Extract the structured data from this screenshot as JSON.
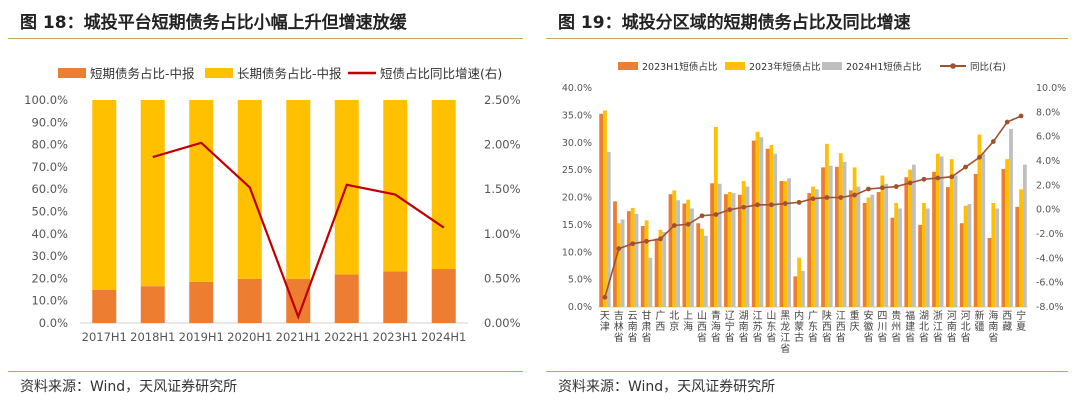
{
  "left_panel": {
    "title": "图 18：城投平台短期债务占比小幅上升但增速放缓",
    "source": "资料来源：Wind，天风证券研究所"
  },
  "right_panel": {
    "title": "图 19：城投分区域的短期债务占比及同比增速",
    "source": "资料来源：Wind，天风证券研究所"
  },
  "colors": {
    "orange": "#ED7D31",
    "yellow": "#FFC000",
    "gray": "#BFBFBF",
    "red": "#C00000",
    "brown": "#A0522D",
    "rule": "#C9A35A"
  },
  "chart_data": [
    {
      "type": "bar",
      "stacked": true,
      "categories": [
        "2017H1",
        "2018H1",
        "2019H1",
        "2020H1",
        "2021H1",
        "2022H1",
        "2023H1",
        "2024H1"
      ],
      "series": [
        {
          "name": "短期债务占比-中报",
          "values": [
            14.8,
            16.5,
            18.5,
            19.8,
            19.8,
            21.8,
            23.2,
            24.2
          ],
          "axis": "left"
        },
        {
          "name": "长期债务占比-中报",
          "values": [
            85.2,
            83.5,
            81.5,
            80.2,
            80.2,
            78.2,
            76.8,
            75.8
          ],
          "axis": "left"
        },
        {
          "name": "短债占比同比增速(右)",
          "type": "line",
          "values": [
            null,
            1.86,
            2.02,
            1.52,
            0.07,
            1.55,
            1.44,
            1.07
          ],
          "axis": "right"
        }
      ],
      "y_left": {
        "min": 0,
        "max": 100,
        "step": 10,
        "ticks": [
          "0.0%",
          "10.0%",
          "20.0%",
          "30.0%",
          "40.0%",
          "50.0%",
          "60.0%",
          "70.0%",
          "80.0%",
          "90.0%",
          "100.0%"
        ]
      },
      "y_right": {
        "min": 0,
        "max": 2.5,
        "step": 0.5,
        "ticks": [
          "0.00%",
          "0.50%",
          "1.00%",
          "1.50%",
          "2.00%",
          "2.50%"
        ]
      },
      "legend": "top"
    },
    {
      "type": "bar",
      "categories": [
        "天津",
        "吉林省",
        "云南省",
        "甘肃省",
        "广西",
        "北京",
        "上海",
        "山西省",
        "青海省",
        "辽宁省",
        "湖南省",
        "江苏省",
        "山东省",
        "黑龙江省",
        "内蒙古",
        "广东省",
        "陕西省",
        "江西省",
        "重庆",
        "安徽省",
        "四川省",
        "贵州省",
        "福建省",
        "湖北省",
        "浙江省",
        "河南省",
        "河北省",
        "新疆",
        "海南省",
        "西藏",
        "宁夏"
      ],
      "series": [
        {
          "name": "2023H1短债占比",
          "values": [
            35.3,
            19.3,
            17.5,
            14.8,
            12.5,
            20.6,
            18.9,
            15.3,
            22.6,
            20.6,
            20.5,
            30.4,
            28.9,
            23.0,
            5.6,
            20.8,
            25.5,
            25.6,
            21.3,
            19.0,
            21.0,
            16.3,
            23.7,
            15.0,
            24.7,
            21.9,
            15.3,
            24.3,
            12.6,
            25.2,
            18.3
          ],
          "axis": "left"
        },
        {
          "name": "2023年短债占比",
          "values": [
            35.9,
            15.3,
            18.1,
            15.8,
            14.1,
            21.3,
            19.6,
            14.3,
            32.9,
            21.0,
            23.0,
            32.0,
            29.6,
            23.0,
            9.0,
            22.0,
            29.8,
            28.1,
            25.5,
            20.0,
            24.0,
            19.0,
            25.1,
            19.0,
            28.0,
            27.0,
            18.5,
            31.5,
            19.0,
            27.0,
            21.5
          ],
          "axis": "left"
        },
        {
          "name": "2024H1短债占比",
          "values": [
            28.3,
            16.0,
            17.0,
            9.0,
            13.7,
            19.5,
            18.0,
            13.0,
            22.5,
            20.8,
            22.0,
            31.0,
            28.0,
            23.5,
            6.6,
            21.5,
            25.8,
            26.5,
            22.0,
            20.5,
            22.5,
            18.0,
            26.0,
            18.0,
            27.5,
            24.0,
            18.8,
            28.0,
            18.0,
            32.5,
            26.0
          ],
          "axis": "left"
        },
        {
          "name": "同比(右)",
          "type": "line",
          "values": [
            -7.2,
            -3.2,
            -2.8,
            -2.6,
            -2.4,
            -1.3,
            -1.2,
            -0.5,
            -0.4,
            0.0,
            0.2,
            0.4,
            0.4,
            0.5,
            0.6,
            0.9,
            1.0,
            1.0,
            1.2,
            1.7,
            1.8,
            1.9,
            2.2,
            2.5,
            2.6,
            2.7,
            3.5,
            4.3,
            5.6,
            7.2,
            7.7
          ],
          "axis": "right"
        }
      ],
      "y_left": {
        "min": 0,
        "max": 40,
        "step": 5,
        "ticks": [
          "0.0%",
          "5.0%",
          "10.0%",
          "15.0%",
          "20.0%",
          "25.0%",
          "30.0%",
          "35.0%",
          "40.0%"
        ]
      },
      "y_right": {
        "min": -8,
        "max": 10,
        "step": 2,
        "ticks": [
          "-8.0%",
          "-6.0%",
          "-4.0%",
          "-2.0%",
          "0.0%",
          "2.0%",
          "4.0%",
          "6.0%",
          "8.0%",
          "10.0%"
        ]
      },
      "legend": "top"
    }
  ]
}
